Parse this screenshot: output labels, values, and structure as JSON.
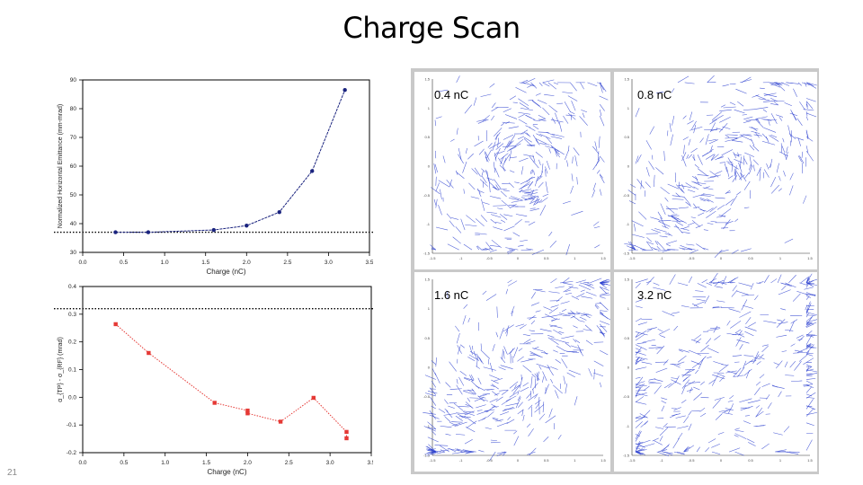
{
  "slide": {
    "title": "Charge Scan",
    "number": "21"
  },
  "chart_data": [
    {
      "type": "line",
      "xlabel": "Charge (nC)",
      "ylabel": "Normalized Horizontal Emittance (mm-mrad)",
      "xlim": [
        0.0,
        3.5
      ],
      "ylim": [
        30,
        90
      ],
      "x_ticks": [
        "0.0",
        "0.5",
        "1.0",
        "1.5",
        "2.0",
        "2.5",
        "3.0",
        "3.5"
      ],
      "y_ticks": [
        "30",
        "40",
        "50",
        "60",
        "70",
        "80",
        "90"
      ],
      "series": [
        {
          "x": [
            0.4,
            0.8,
            1.6,
            2.0,
            2.4,
            2.8,
            3.2
          ],
          "y": [
            37.0,
            37.0,
            37.8,
            39.3,
            44.0,
            58.3,
            86.5
          ],
          "color": "#1a237e"
        }
      ],
      "reference_line": {
        "y": 37.0,
        "style": "dotted"
      }
    },
    {
      "type": "line",
      "xlabel": "Charge (nC)",
      "ylabel": "α_{TP} - σ_{RF} (mrad)",
      "xlim": [
        0.0,
        3.5
      ],
      "ylim": [
        -0.2,
        0.4
      ],
      "x_ticks": [
        "0.0",
        "0.5",
        "1.0",
        "1.5",
        "2.0",
        "2.5",
        "3.0",
        "3.5"
      ],
      "y_ticks": [
        "0.4",
        "0.3",
        "0.2",
        "0.1",
        "0.0",
        "-0.1",
        "-0.2"
      ],
      "series": [
        {
          "x": [
            0.4,
            0.8,
            1.6,
            2.0,
            2.0,
            2.4,
            2.8,
            3.2,
            3.2
          ],
          "y": [
            0.264,
            0.16,
            -0.02,
            -0.048,
            -0.058,
            -0.088,
            -0.002,
            -0.125,
            -0.148
          ],
          "color": "#e53935"
        }
      ],
      "reference_line": {
        "y": 0.32,
        "style": "dotted"
      }
    },
    {
      "type": "scatter",
      "title": "0.4 nC",
      "note": "vector field image of particle phase space (x vs x')",
      "x_tick_labels": [
        "-1.5",
        "-1",
        "-0.5",
        "0",
        "0.5",
        "1",
        "1.5"
      ],
      "y_tick_labels": [
        "1.5",
        "1",
        "0.5",
        "0",
        "-0.5",
        "-1",
        "-1.5"
      ]
    },
    {
      "type": "scatter",
      "title": "0.8 nC",
      "x_tick_labels": [
        "-1.5",
        "-1",
        "-0.5",
        "0",
        "0.5",
        "1",
        "1.5"
      ],
      "y_tick_labels": [
        "1.5",
        "1",
        "0.5",
        "0",
        "-0.5",
        "-1",
        "-1.5"
      ]
    },
    {
      "type": "scatter",
      "title": "1.6 nC",
      "x_tick_labels": [
        "-1.5",
        "-1",
        "-0.5",
        "0",
        "0.5",
        "1",
        "1.5"
      ],
      "y_tick_labels": [
        "1.5",
        "1",
        "0.5",
        "0",
        "-0.5",
        "-1",
        "-1.5"
      ]
    },
    {
      "type": "scatter",
      "title": "3.2 nC",
      "x_tick_labels": [
        "-1.5",
        "-1",
        "-0.5",
        "0",
        "0.5",
        "1",
        "1.5"
      ],
      "y_tick_labels": [
        "1.5",
        "1",
        "0.5",
        "0",
        "-0.5",
        "-1",
        "-1.5"
      ]
    }
  ],
  "colors": {
    "phase_arrow": "#2b3fcf",
    "panel_background": "#c9c9c9"
  }
}
